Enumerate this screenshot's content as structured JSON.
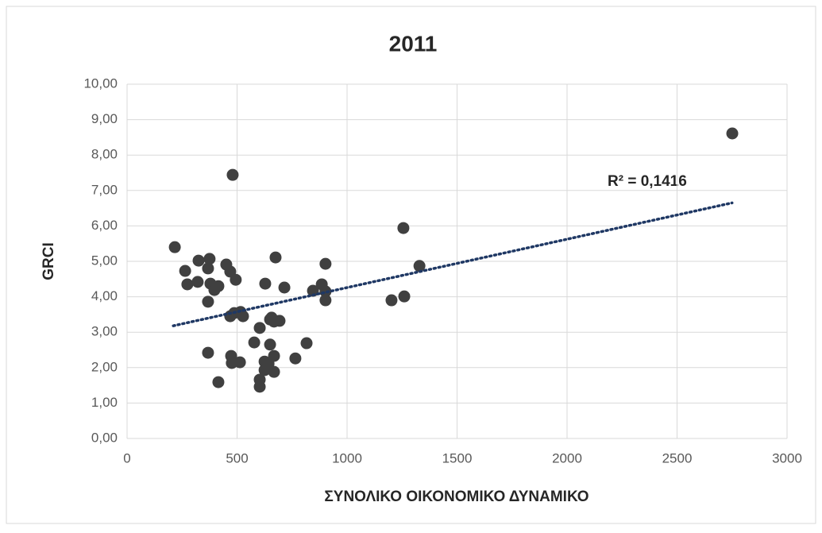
{
  "chart_data": {
    "type": "scatter",
    "title": "2011",
    "xlabel": "ΣΥΝΟΛΙΚΟ ΟΙΚΟΝΟΜΙΚΟ ΔΥΝΑΜΙΚΟ",
    "ylabel": "GRCI",
    "annotation": "R² = 0,1416",
    "color": "#404040",
    "trendline_color": "#1f3864",
    "grid": true,
    "x": [
      217,
      264,
      274,
      325,
      321,
      375,
      368,
      379,
      397,
      368,
      415,
      368,
      415,
      451,
      469,
      494,
      480,
      469,
      487,
      516,
      527,
      473,
      476,
      513,
      578,
      603,
      603,
      603,
      628,
      625,
      625,
      650,
      657,
      668,
      693,
      650,
      668,
      668,
      643,
      675,
      715,
      765,
      816,
      845,
      885,
      902,
      902,
      902,
      1202,
      1256,
      1260,
      1329,
      2751
    ],
    "values": [
      5.4,
      4.73,
      4.35,
      5.02,
      4.42,
      5.07,
      4.8,
      4.37,
      4.19,
      3.86,
      4.3,
      2.42,
      1.59,
      4.91,
      4.71,
      4.48,
      7.44,
      3.45,
      3.54,
      3.57,
      3.45,
      2.33,
      2.13,
      2.15,
      2.71,
      3.12,
      1.66,
      1.46,
      4.37,
      2.17,
      1.93,
      3.36,
      3.41,
      3.3,
      3.32,
      2.65,
      2.33,
      1.88,
      2.11,
      5.11,
      4.26,
      2.26,
      2.69,
      4.17,
      4.35,
      4.15,
      3.9,
      4.93,
      3.9,
      5.94,
      4.01,
      4.87,
      8.61
    ],
    "trendline": {
      "x": [
        210,
        2750
      ],
      "y": [
        3.18,
        6.65
      ]
    },
    "xlim": [
      0,
      3000
    ],
    "xticks": [
      0,
      500,
      1000,
      1500,
      2000,
      2500,
      3000
    ],
    "ylim": [
      0,
      10
    ],
    "yticks": [
      {
        "value": 0,
        "label": "0,00"
      },
      {
        "value": 1,
        "label": "1,00"
      },
      {
        "value": 2,
        "label": "2,00"
      },
      {
        "value": 3,
        "label": "3,00"
      },
      {
        "value": 4,
        "label": "4,00"
      },
      {
        "value": 5,
        "label": "5,00"
      },
      {
        "value": 6,
        "label": "6,00"
      },
      {
        "value": 7,
        "label": "7,00"
      },
      {
        "value": 8,
        "label": "8,00"
      },
      {
        "value": 9,
        "label": "9,00"
      },
      {
        "value": 10,
        "label": "10,00"
      }
    ]
  }
}
